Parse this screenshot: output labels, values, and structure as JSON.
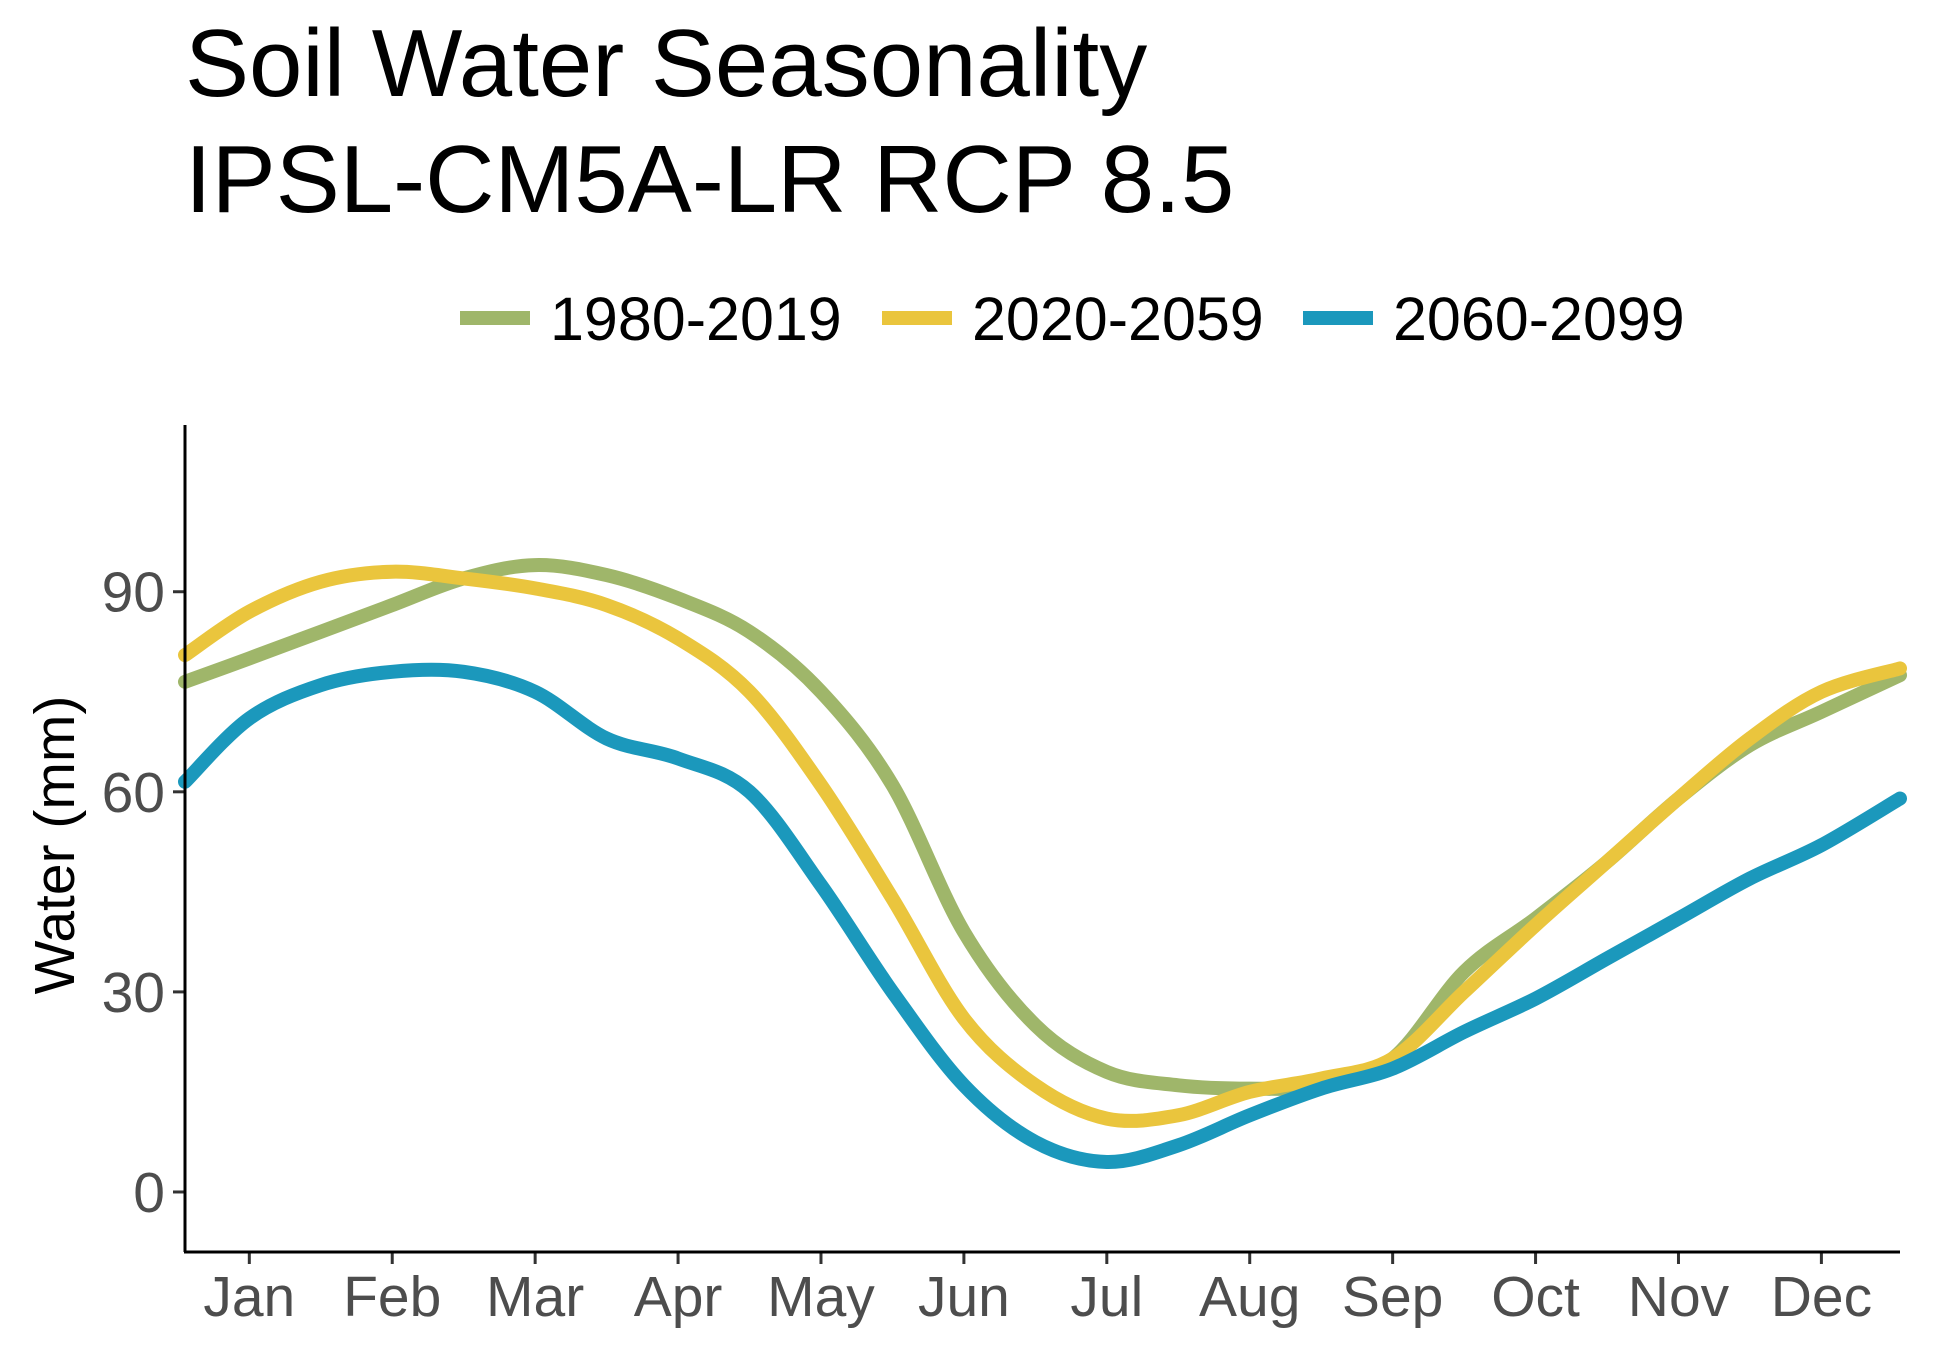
{
  "chart_data": {
    "type": "line",
    "title": [
      "Soil Water Seasonality",
      "IPSL-CM5A-LR RCP 8.5"
    ],
    "xlabel": "",
    "ylabel": "Water (mm)",
    "categories": [
      "Jan",
      "Feb",
      "Mar",
      "Apr",
      "May",
      "Jun",
      "Jul",
      "Aug",
      "Sep",
      "Oct",
      "Nov",
      "Dec"
    ],
    "xlim": [
      -0.45,
      11.55
    ],
    "ylim": [
      -9,
      115
    ],
    "yticks": [
      0,
      30,
      60,
      90
    ],
    "legend_position": "top",
    "grid": false,
    "series": [
      {
        "name": "1980-2019",
        "color": "#9FB66A",
        "x": [
          -0.45,
          0.0,
          0.5,
          1.0,
          1.5,
          2.0,
          2.5,
          3.0,
          3.5,
          4.0,
          4.5,
          5.0,
          5.5,
          6.0,
          6.5,
          7.0,
          7.5,
          8.0,
          8.5,
          9.0,
          9.5,
          10.0,
          10.5,
          11.0,
          11.55
        ],
        "values": [
          76.5,
          80,
          84,
          88,
          92,
          94,
          92.5,
          89,
          84,
          75,
          61,
          39,
          25,
          18,
          16,
          15.5,
          16,
          20,
          33,
          41,
          49.5,
          59,
          67,
          72,
          77.5
        ]
      },
      {
        "name": "2020-2059",
        "color": "#EAC53D",
        "x": [
          -0.45,
          0.0,
          0.5,
          1.0,
          1.5,
          2.0,
          2.5,
          3.0,
          3.5,
          4.0,
          4.5,
          5.0,
          5.5,
          6.0,
          6.5,
          7.0,
          7.5,
          8.0,
          8.5,
          9.0,
          9.5,
          10.0,
          10.5,
          11.0,
          11.55
        ],
        "values": [
          80.5,
          87,
          91.5,
          93,
          92,
          90.5,
          88,
          83,
          75,
          61,
          44,
          26,
          16,
          11,
          11.5,
          15,
          17,
          20,
          30,
          40,
          49.5,
          59,
          68,
          75,
          78.5
        ]
      },
      {
        "name": "2060-2099",
        "color": "#1B98BC",
        "x": [
          -0.45,
          0.0,
          0.5,
          1.0,
          1.5,
          2.0,
          2.5,
          3.0,
          3.5,
          4.0,
          4.5,
          5.0,
          5.5,
          6.0,
          6.5,
          7.0,
          7.5,
          8.0,
          8.5,
          9.0,
          9.5,
          10.0,
          10.5,
          11.0,
          11.55
        ],
        "values": [
          61.5,
          71,
          76,
          78,
          78,
          75,
          68,
          65,
          60,
          46,
          30,
          16,
          7.5,
          4.5,
          7,
          11.5,
          15.5,
          18.5,
          24,
          29,
          35,
          41,
          47,
          52,
          59
        ]
      }
    ]
  }
}
